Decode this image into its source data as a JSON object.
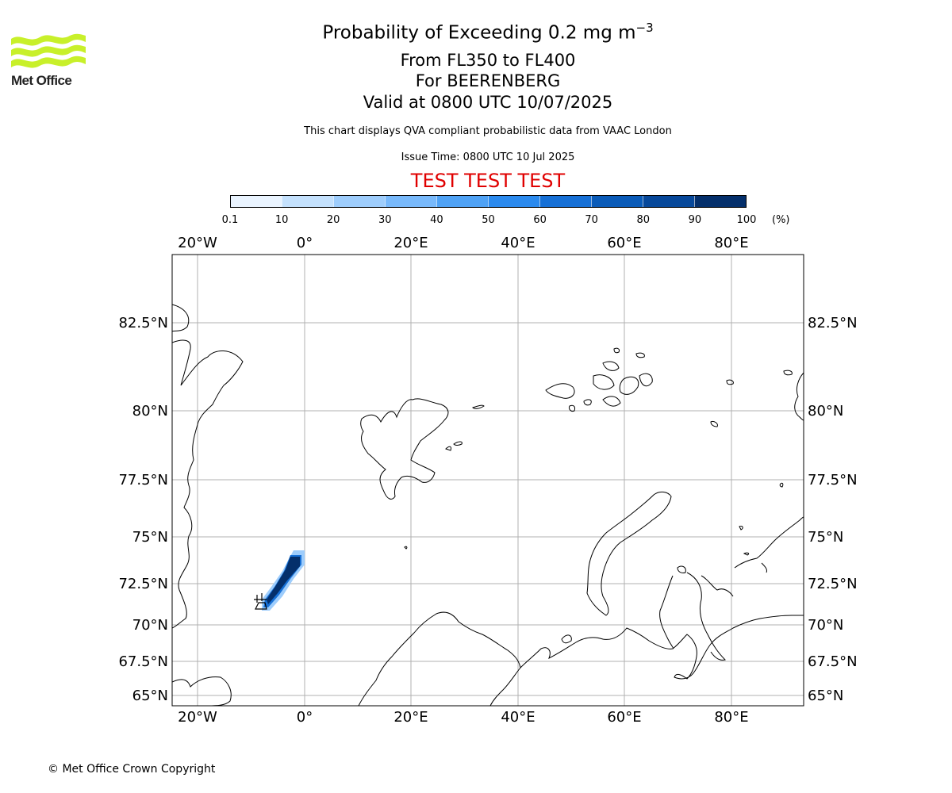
{
  "logo": {
    "text": "Met Office",
    "color": "#c8f02a",
    "icon": "met-office-wave-logo"
  },
  "header": {
    "title_main": "Probability of Exceeding 0.2 mg m",
    "title_exp": "−3",
    "line2": "From FL350 to FL400",
    "line3": "For BEERENBERG",
    "line4": "Valid at 0800 UTC 10/07/2025",
    "note": "This chart displays QVA compliant probabilistic data from VAAC London",
    "issue": "Issue Time: 0800 UTC 10 Jul 2025",
    "test_banner": "TEST TEST TEST",
    "test_color": "#e00000"
  },
  "colorbar": {
    "ticks": [
      "0.1",
      "10",
      "20",
      "30",
      "40",
      "50",
      "60",
      "70",
      "80",
      "90",
      "100"
    ],
    "unit": "(%)",
    "colors": [
      "#eaf4ff",
      "#c4e1fd",
      "#9ecdfc",
      "#78b9fb",
      "#4fa2f5",
      "#2b8aee",
      "#1670d6",
      "#0a5bb8",
      "#07489a",
      "#042f6b"
    ]
  },
  "map": {
    "lon_labels": [
      "20°W",
      "0°",
      "20°E",
      "40°E",
      "60°E",
      "80°E"
    ],
    "lat_labels": [
      "82.5°N",
      "80°N",
      "77.5°N",
      "75°N",
      "72.5°N",
      "70°N",
      "67.5°N",
      "65°N"
    ],
    "grid_color": "#b0b0b0",
    "plume_color": "#042f6b",
    "volcano_icon": "volcano-marker-icon"
  },
  "footer": {
    "copyright": "© Met Office Crown Copyright"
  }
}
